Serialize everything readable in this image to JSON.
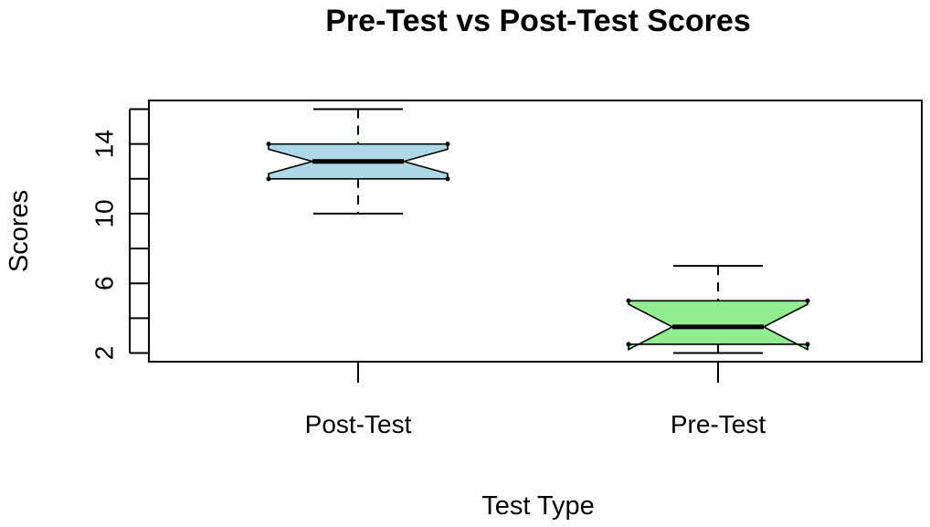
{
  "chart_data": {
    "type": "boxplot",
    "title": "Pre-Test vs Post-Test Scores",
    "xlabel": "Test Type",
    "ylabel": "Scores",
    "ylim": [
      1.5,
      16.5
    ],
    "yticks": [
      2,
      4,
      6,
      8,
      10,
      12,
      14,
      16
    ],
    "ytick_labels": [
      {
        "value": 2,
        "label": "2"
      },
      {
        "value": 6,
        "label": "6"
      },
      {
        "value": 10,
        "label": "10"
      },
      {
        "value": 14,
        "label": "14"
      }
    ],
    "notched": true,
    "grid": false,
    "categories": [
      "Post-Test",
      "Pre-Test"
    ],
    "boxes": [
      {
        "category": "Post-Test",
        "min": 10,
        "q1": 12,
        "median": 13,
        "q3": 14,
        "max": 16,
        "notch_low": 12.3,
        "notch_high": 13.7,
        "color": "#add8e6"
      },
      {
        "category": "Pre-Test",
        "min": 2,
        "q1": 2.5,
        "median": 3.5,
        "q3": 5,
        "max": 7,
        "notch_low": 2.2,
        "notch_high": 4.8,
        "color": "#90ee90"
      }
    ]
  }
}
